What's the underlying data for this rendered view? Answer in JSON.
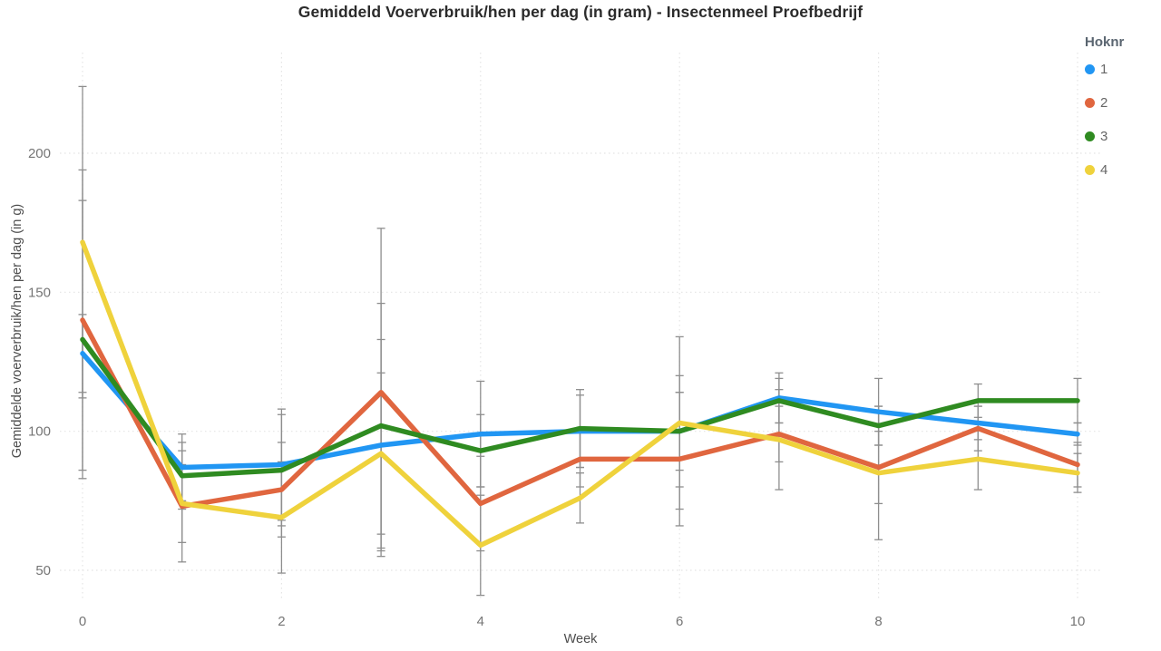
{
  "title": "Gemiddeld Voerverbruik/hen per dag (in gram) - Insectenmeel Proefbedrijf",
  "legend": {
    "title": "Hoknr",
    "position": "top-right"
  },
  "chart_data": {
    "type": "line",
    "x": [
      0,
      1,
      2,
      3,
      4,
      5,
      6,
      7,
      8,
      9,
      10
    ],
    "xlabel": "Week",
    "ylabel": "Gemiddelde voerverbruik/hen per dag (in g)",
    "xticks": [
      0,
      2,
      4,
      6,
      8,
      10
    ],
    "yticks": [
      50,
      100,
      150,
      200
    ],
    "ylim": [
      38,
      236
    ],
    "grid": "dotted",
    "error_bars": true,
    "series": [
      {
        "name": "1",
        "color": "#2196F3",
        "values": [
          128,
          87,
          88,
          95,
          99,
          100,
          100,
          112,
          107,
          103,
          99
        ],
        "err": [
          14,
          12,
          20,
          38,
          19,
          13,
          20,
          9,
          12,
          6,
          4
        ]
      },
      {
        "name": "2",
        "color": "#E0663F",
        "values": [
          140,
          73,
          79,
          114,
          74,
          90,
          90,
          99,
          87,
          101,
          88
        ],
        "err": [
          54,
          20,
          17,
          59,
          17,
          10,
          24,
          10,
          13,
          8,
          8
        ]
      },
      {
        "name": "3",
        "color": "#2F8B21",
        "values": [
          133,
          84,
          86,
          102,
          93,
          101,
          100,
          111,
          102,
          111,
          111
        ],
        "err": [
          50,
          12,
          20,
          44,
          13,
          14,
          14,
          8,
          7,
          6,
          8
        ]
      },
      {
        "name": "4",
        "color": "#EFD23C",
        "values": [
          168,
          74,
          69,
          92,
          59,
          76,
          103,
          97,
          85,
          90,
          85
        ],
        "err": [
          56,
          14,
          20,
          29,
          18,
          9,
          31,
          18,
          24,
          11,
          7
        ]
      }
    ]
  },
  "colors": {
    "errorbar": "#8E8E8E",
    "grid": "#E4E4E4",
    "tick_text": "#757575",
    "axis_title_text": "#4D4D4D",
    "title_text": "#2B2B2B",
    "legend_title_text": "#5A6570",
    "legend_label_text": "#666666"
  }
}
